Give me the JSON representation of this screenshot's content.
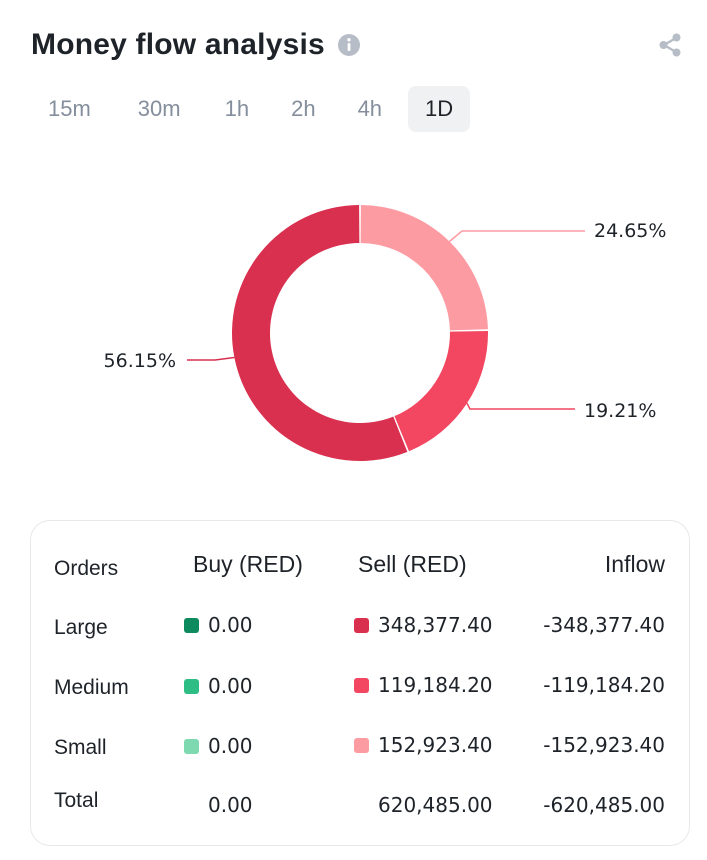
{
  "header": {
    "title": "Money flow analysis"
  },
  "tabs": [
    {
      "label": "15m",
      "active": false
    },
    {
      "label": "30m",
      "active": false
    },
    {
      "label": "1h",
      "active": false
    },
    {
      "label": "2h",
      "active": false
    },
    {
      "label": "4h",
      "active": false
    },
    {
      "label": "1D",
      "active": true
    }
  ],
  "icons": {
    "info": "info-icon",
    "share": "share-icon"
  },
  "colors": {
    "large_sell": "#d9304f",
    "medium_sell": "#f34660",
    "small_sell": "#fd9ba3",
    "large_buy": "#0e8a5f",
    "medium_buy": "#2ebd85",
    "small_buy": "#7fd9b0"
  },
  "chart_data": {
    "type": "pie",
    "donut": true,
    "slices": [
      {
        "label": "24.65%",
        "value": 24.65,
        "color": "#fd9ba3"
      },
      {
        "label": "19.21%",
        "value": 19.21,
        "color": "#f34660"
      },
      {
        "label": "56.15%",
        "value": 56.15,
        "color": "#d9304f"
      }
    ]
  },
  "table": {
    "headers": {
      "orders": "Orders",
      "buy": "Buy (RED)",
      "sell": "Sell (RED)",
      "inflow": "Inflow"
    },
    "rows": [
      {
        "label": "Large",
        "buy": "0.00",
        "sell": "348,377.40",
        "inflow": "-348,377.40",
        "buy_color": "#0e8a5f",
        "sell_color": "#d9304f"
      },
      {
        "label": "Medium",
        "buy": "0.00",
        "sell": "119,184.20",
        "inflow": "-119,184.20",
        "buy_color": "#2ebd85",
        "sell_color": "#f34660"
      },
      {
        "label": "Small",
        "buy": "0.00",
        "sell": "152,923.40",
        "inflow": "-152,923.40",
        "buy_color": "#7fd9b0",
        "sell_color": "#fd9ba3"
      }
    ],
    "total": {
      "label": "Total",
      "buy": "0.00",
      "sell": "620,485.00",
      "inflow": "-620,485.00"
    }
  }
}
